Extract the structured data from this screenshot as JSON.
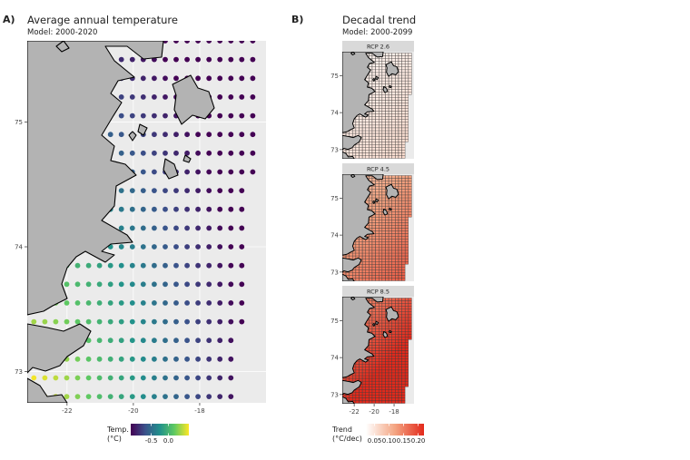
{
  "panel_a": {
    "letter": "A)",
    "title": "Average annual temperature",
    "subtitle": "Model: 2000-2020"
  },
  "panel_b": {
    "letter": "B)",
    "title": "Decadal trend",
    "subtitle": "Model: 2000-2099"
  },
  "colors": {
    "panel_bg": "#ebebeb",
    "land": "#b3b3b3",
    "grid": "#ffffff"
  },
  "chart_data": [
    {
      "type": "scatter",
      "kind": "gridded-map",
      "title": "Average annual temperature",
      "subtitle": "Model: 2000-2020",
      "xlabel": "",
      "ylabel": "",
      "xlim": [
        -23.2,
        -16.0
      ],
      "ylim": [
        72.75,
        75.65
      ],
      "x_ticks": [
        -22,
        -20,
        -18
      ],
      "x_tick_labels": [
        "-22",
        "-20",
        "-18"
      ],
      "y_ticks": [
        73,
        74,
        75
      ],
      "y_tick_labels": [
        "73",
        "74",
        "75"
      ],
      "grid": true,
      "legend": {
        "title_lines": [
          "Temp.",
          "(°C)"
        ],
        "position": "bottom",
        "type": "colorbar",
        "palette": "viridis",
        "range": [
          -1.1,
          0.6
        ],
        "ticks": [
          -0.5,
          0.0
        ],
        "tick_labels": [
          "-0.5",
          "0.0"
        ]
      },
      "field": {
        "x_start": -23.0,
        "x_step": 0.33,
        "y_start": 72.8,
        "y_step": 0.15,
        "x_east_south": -16.9,
        "x_east_north": -16.1,
        "warm_value": 0.45,
        "cold_value": -1.05
      }
    },
    {
      "type": "heatmap",
      "kind": "faceted-map",
      "title": "Decadal trend",
      "subtitle": "Model: 2000-2099",
      "xlim": [
        -23.2,
        -16.0
      ],
      "ylim": [
        72.75,
        75.65
      ],
      "x_ticks": [
        -22,
        -20,
        -18
      ],
      "x_tick_labels": [
        "-22",
        "-20",
        "-18"
      ],
      "y_ticks": [
        73,
        74,
        75
      ],
      "y_tick_labels": [
        "73",
        "74",
        "75"
      ],
      "facets": [
        {
          "label": "RCP 2.6",
          "level": 0.04
        },
        {
          "label": "RCP 4.5",
          "level": 0.12
        },
        {
          "label": "RCP 8.5",
          "level": 0.18
        }
      ],
      "legend": {
        "title_lines": [
          "Trend",
          "(°C/dec)"
        ],
        "position": "bottom",
        "type": "colorbar",
        "palette": "white-red",
        "range": [
          0.02,
          0.22
        ],
        "ticks": [
          0.05,
          0.1,
          0.15,
          0.2
        ],
        "tick_labels": [
          "0.05",
          "0.10",
          "0.15",
          "0.20"
        ]
      }
    }
  ]
}
